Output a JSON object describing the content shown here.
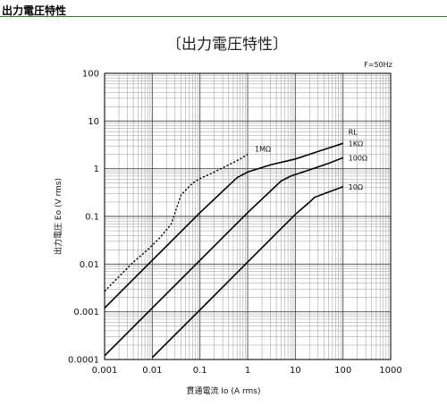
{
  "page": {
    "header": "出力電圧特性"
  },
  "chart_data": {
    "type": "line",
    "title": "〔出力電圧特性〕",
    "annotation": "F=50Hz",
    "xlabel": "貫通電流 Io (A rms)",
    "ylabel": "出力電圧 Eo (V rms)",
    "x_scale": "log",
    "y_scale": "log",
    "xlim": [
      0.001,
      1000
    ],
    "ylim": [
      0.0001,
      100
    ],
    "x_ticks": [
      "0.001",
      "0.01",
      "0.1",
      "1",
      "10",
      "100",
      "1000"
    ],
    "y_ticks": [
      "100",
      "10",
      "1",
      "0.1",
      "0.01",
      "0.001",
      "0.0001"
    ],
    "grid": true,
    "legend_header": "RL",
    "series": [
      {
        "name": "1MΩ",
        "style": "dotted",
        "x": [
          0.001,
          0.002,
          0.004,
          0.008,
          0.015,
          0.025,
          0.04,
          0.07,
          0.1,
          0.2,
          0.4,
          0.7,
          1.0
        ],
        "y": [
          0.0027,
          0.0055,
          0.011,
          0.02,
          0.037,
          0.07,
          0.28,
          0.5,
          0.62,
          0.85,
          1.2,
          1.6,
          2.0
        ]
      },
      {
        "name": "1KΩ",
        "style": "solid",
        "x": [
          0.001,
          0.01,
          0.1,
          0.6,
          1.0,
          3.0,
          10,
          30,
          100
        ],
        "y": [
          0.0012,
          0.012,
          0.12,
          0.65,
          0.85,
          1.2,
          1.6,
          2.3,
          3.4
        ]
      },
      {
        "name": "100Ω",
        "style": "solid",
        "x": [
          0.001,
          0.01,
          0.1,
          1.0,
          5.0,
          8.0,
          20,
          50,
          100
        ],
        "y": [
          0.00012,
          0.0012,
          0.012,
          0.12,
          0.55,
          0.7,
          0.95,
          1.3,
          1.7
        ]
      },
      {
        "name": "10Ω",
        "style": "solid",
        "x": [
          0.01,
          0.1,
          1.0,
          10,
          20,
          25,
          40,
          100
        ],
        "y": [
          0.00011,
          0.0011,
          0.011,
          0.11,
          0.2,
          0.25,
          0.3,
          0.42
        ]
      }
    ]
  }
}
